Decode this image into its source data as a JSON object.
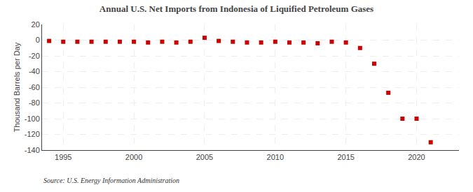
{
  "chart_data": {
    "type": "scatter",
    "title": "Annual U.S. Net Imports from Indonesia of Liquified Petroleum Gases",
    "ylabel": "Thousand Barrels per Day",
    "annotations": [
      "Source: U.S. Energy Information Administration"
    ],
    "x": [
      1994,
      1995,
      1996,
      1997,
      1998,
      1999,
      2000,
      2001,
      2002,
      2003,
      2004,
      2005,
      2006,
      2007,
      2008,
      2009,
      2010,
      2011,
      2012,
      2013,
      2014,
      2015,
      2016,
      2017,
      2018,
      2019,
      2020,
      2021
    ],
    "values": [
      -1,
      -2,
      -2,
      -2,
      -2,
      -2,
      -2,
      -3,
      -2,
      -3,
      -2,
      3,
      -1,
      -2,
      -3,
      -3,
      -2,
      -3,
      -3,
      -4,
      -2,
      -3,
      -10,
      -30,
      -67,
      -100,
      -100,
      -130
    ],
    "color": "#cc0000",
    "marker": "square",
    "xlim": [
      1993.5,
      2023
    ],
    "xticks": [
      1995,
      2000,
      2005,
      2010,
      2015,
      2020
    ],
    "ylim": [
      -140,
      20
    ],
    "yticks": [
      20,
      0,
      -20,
      -40,
      -60,
      -80,
      -100,
      -120,
      -140
    ],
    "grid": true
  }
}
